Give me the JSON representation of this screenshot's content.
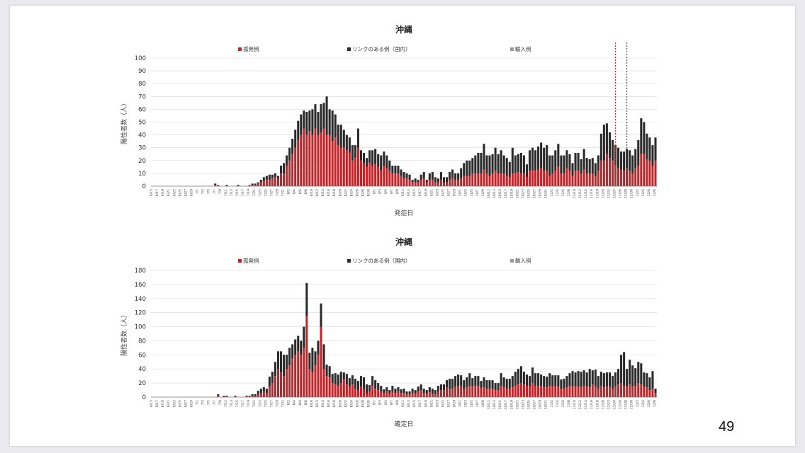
{
  "page_number": "49",
  "legend_labels": [
    "孤発例",
    "リンクのある例（国内）",
    "輸入例"
  ],
  "colors": {
    "sporadic": "#c0252a",
    "linked": "#2b2b2b",
    "imported": "#9a9a9a",
    "grid": "#d9d9d9",
    "red_marker": "#d42a2a",
    "dark_marker": "#334"
  },
  "chart_data": [
    {
      "type": "bar",
      "stacked": true,
      "title": "沖縄",
      "xlabel": "発症日",
      "ylabel": "陽性者数（人）",
      "ylim": [
        0,
        100
      ],
      "yticks": [
        0,
        10,
        20,
        30,
        40,
        50,
        60,
        70,
        80,
        90,
        100
      ],
      "start_date": "6/15",
      "tick_every_days": 2,
      "num_days": 177,
      "legend": "top",
      "vertical_markers": [
        {
          "day_index": 162,
          "style": "red-dashed"
        },
        {
          "day_index": 166,
          "style": "black-dashed"
        }
      ],
      "series": [
        {
          "name": "孤発例",
          "values": [
            0,
            0,
            0,
            0,
            0,
            0,
            0,
            0,
            0,
            0,
            0,
            0,
            0,
            0,
            0,
            0,
            0,
            0,
            0,
            0,
            0,
            0,
            1,
            1,
            0,
            0,
            0,
            0,
            0,
            0,
            0,
            0,
            0,
            0,
            1,
            1,
            1,
            2,
            3,
            4,
            5,
            5,
            6,
            7,
            6,
            10,
            10,
            16,
            20,
            25,
            30,
            36,
            40,
            45,
            40,
            43,
            40,
            45,
            40,
            42,
            45,
            40,
            40,
            35,
            38,
            32,
            30,
            30,
            28,
            26,
            20,
            22,
            30,
            20,
            18,
            15,
            18,
            16,
            17,
            15,
            12,
            16,
            14,
            12,
            10,
            10,
            10,
            8,
            6,
            6,
            5,
            3,
            3,
            3,
            5,
            6,
            3,
            5,
            5,
            3,
            3,
            5,
            3,
            3,
            5,
            6,
            5,
            5,
            6,
            8,
            8,
            8,
            10,
            10,
            10,
            10,
            13,
            10,
            8,
            10,
            12,
            10,
            10,
            10,
            8,
            7,
            10,
            10,
            11,
            10,
            10,
            7,
            12,
            12,
            12,
            13,
            14,
            12,
            12,
            8,
            10,
            12,
            15,
            10,
            10,
            14,
            12,
            8,
            12,
            12,
            10,
            13,
            10,
            10,
            10,
            8,
            12,
            20,
            20,
            25,
            22,
            20,
            16,
            14,
            13,
            12,
            14,
            12,
            10,
            14,
            16,
            25,
            25,
            21,
            20,
            16,
            20,
            18,
            12,
            10,
            8
          ]
        },
        {
          "name": "リンクのある例（国内）",
          "values": [
            0,
            0,
            0,
            0,
            0,
            0,
            0,
            0,
            0,
            0,
            0,
            0,
            0,
            0,
            0,
            0,
            0,
            0,
            0,
            0,
            0,
            0,
            1,
            0,
            0,
            0,
            1,
            0,
            0,
            0,
            1,
            0,
            0,
            0,
            0,
            1,
            1,
            1,
            2,
            3,
            3,
            4,
            3,
            3,
            2,
            6,
            8,
            8,
            10,
            12,
            14,
            15,
            16,
            14,
            18,
            16,
            20,
            19,
            18,
            22,
            20,
            30,
            20,
            24,
            18,
            16,
            18,
            14,
            12,
            12,
            12,
            10,
            15,
            8,
            8,
            7,
            10,
            12,
            12,
            10,
            12,
            11,
            10,
            8,
            6,
            6,
            6,
            5,
            5,
            4,
            4,
            2,
            3,
            2,
            4,
            5,
            2,
            5,
            6,
            4,
            3,
            6,
            4,
            4,
            6,
            7,
            5,
            5,
            8,
            10,
            12,
            12,
            12,
            14,
            16,
            16,
            20,
            14,
            16,
            15,
            18,
            15,
            18,
            14,
            14,
            12,
            20,
            14,
            14,
            16,
            14,
            10,
            16,
            18,
            16,
            18,
            20,
            18,
            20,
            16,
            14,
            16,
            18,
            14,
            14,
            14,
            13,
            10,
            14,
            14,
            11,
            16,
            12,
            11,
            12,
            10,
            12,
            21,
            28,
            24,
            20,
            16,
            16,
            16,
            14,
            15,
            15,
            16,
            14,
            15,
            20,
            28,
            25,
            20,
            18,
            16,
            18,
            16,
            10,
            8,
            6
          ]
        },
        {
          "name": "輸入例",
          "values": [
            0,
            0,
            0,
            0,
            0,
            0,
            0,
            0,
            0,
            0,
            0,
            0,
            0,
            0,
            0,
            0,
            0,
            0,
            0,
            0,
            0,
            0,
            0,
            0,
            0,
            0,
            0,
            0,
            0,
            0,
            0,
            0,
            0,
            0,
            0,
            0,
            0,
            0,
            0,
            0,
            0,
            0,
            0,
            0,
            0,
            0,
            0,
            0,
            0,
            0,
            0,
            0,
            0,
            0,
            0,
            0,
            0,
            0,
            0,
            0,
            0,
            0,
            0,
            0,
            0,
            0,
            0,
            0,
            0,
            0,
            0,
            0,
            0,
            0,
            0,
            0,
            0,
            0,
            0,
            0,
            0,
            0,
            0,
            0,
            0,
            0,
            0,
            0,
            0,
            0,
            0,
            0,
            0,
            0,
            0,
            0,
            0,
            0,
            0,
            0,
            0,
            0,
            0,
            0,
            0,
            0,
            0,
            0,
            0,
            0,
            0,
            0,
            0,
            0,
            0,
            0,
            0,
            0,
            0,
            0,
            0,
            0,
            0,
            0,
            0,
            0,
            0,
            0,
            0,
            0,
            0,
            0,
            0,
            0,
            0,
            0,
            0,
            0,
            0,
            0,
            0,
            0,
            0,
            0,
            0,
            0,
            0,
            0,
            0,
            0,
            0,
            0,
            0,
            0,
            0,
            0,
            0,
            0,
            0,
            0,
            0,
            0,
            0,
            0,
            0,
            0,
            0,
            0,
            0,
            0,
            0,
            0,
            0,
            0,
            0,
            0,
            0
          ]
        }
      ]
    },
    {
      "type": "bar",
      "stacked": true,
      "title": "沖縄",
      "xlabel": "確定日",
      "ylabel": "陽性者数（人）",
      "ylim": [
        0,
        180
      ],
      "yticks": [
        0,
        20,
        40,
        60,
        80,
        100,
        120,
        140,
        160,
        180
      ],
      "start_date": "6/15",
      "tick_every_days": 2,
      "num_days": 177,
      "legend": "top",
      "series": [
        {
          "name": "孤発例",
          "values": [
            0,
            0,
            0,
            0,
            0,
            0,
            0,
            0,
            0,
            0,
            0,
            0,
            0,
            0,
            0,
            0,
            0,
            0,
            0,
            0,
            0,
            0,
            0,
            2,
            0,
            1,
            1,
            0,
            0,
            1,
            0,
            0,
            0,
            1,
            1,
            2,
            1,
            4,
            6,
            8,
            6,
            15,
            20,
            30,
            40,
            35,
            30,
            40,
            45,
            55,
            60,
            65,
            60,
            70,
            115,
            40,
            35,
            45,
            60,
            100,
            40,
            30,
            28,
            20,
            18,
            16,
            20,
            25,
            18,
            15,
            18,
            12,
            10,
            15,
            12,
            5,
            8,
            16,
            12,
            10,
            8,
            6,
            8,
            5,
            8,
            6,
            8,
            6,
            6,
            4,
            4,
            6,
            5,
            8,
            10,
            6,
            5,
            7,
            5,
            4,
            8,
            10,
            10,
            14,
            12,
            12,
            15,
            16,
            16,
            12,
            14,
            16,
            15,
            16,
            16,
            13,
            14,
            12,
            12,
            12,
            10,
            10,
            16,
            14,
            12,
            12,
            14,
            16,
            18,
            20,
            18,
            16,
            15,
            20,
            16,
            16,
            16,
            14,
            14,
            16,
            15,
            15,
            15,
            12,
            12,
            14,
            16,
            15,
            15,
            15,
            14,
            16,
            15,
            14,
            18,
            15,
            12,
            16,
            14,
            15,
            15,
            12,
            15,
            18,
            20,
            16,
            15,
            18,
            15,
            16,
            20,
            18,
            15,
            14,
            10,
            12,
            6
          ]
        },
        {
          "name": "リンクのある例（国内）",
          "values": [
            0,
            0,
            0,
            0,
            0,
            0,
            0,
            0,
            0,
            0,
            0,
            0,
            0,
            0,
            0,
            0,
            0,
            0,
            0,
            0,
            0,
            0,
            0,
            2,
            0,
            1,
            1,
            0,
            0,
            1,
            0,
            0,
            0,
            1,
            1,
            2,
            3,
            5,
            6,
            6,
            6,
            14,
            16,
            20,
            25,
            30,
            30,
            20,
            25,
            20,
            22,
            22,
            20,
            30,
            47,
            23,
            35,
            20,
            20,
            33,
            35,
            16,
            16,
            13,
            16,
            16,
            16,
            10,
            15,
            12,
            13,
            14,
            13,
            15,
            16,
            13,
            9,
            14,
            12,
            10,
            8,
            5,
            6,
            5,
            8,
            6,
            6,
            5,
            6,
            4,
            4,
            6,
            5,
            7,
            8,
            6,
            5,
            7,
            7,
            6,
            8,
            8,
            8,
            10,
            14,
            14,
            15,
            16,
            15,
            12,
            14,
            18,
            12,
            14,
            14,
            10,
            14,
            12,
            12,
            12,
            10,
            10,
            18,
            14,
            14,
            14,
            16,
            20,
            22,
            24,
            18,
            16,
            15,
            22,
            18,
            18,
            16,
            16,
            15,
            18,
            16,
            16,
            16,
            13,
            14,
            16,
            18,
            22,
            20,
            22,
            22,
            22,
            20,
            26,
            20,
            24,
            18,
            20,
            20,
            20,
            20,
            18,
            20,
            22,
            40,
            48,
            25,
            35,
            30,
            25,
            30,
            30,
            20,
            20,
            18,
            25,
            6
          ]
        },
        {
          "name": "輸入例",
          "values": [
            0,
            0,
            0,
            0,
            0,
            0,
            0,
            0,
            0,
            0,
            0,
            0,
            0,
            0,
            0,
            0,
            0,
            0,
            0,
            0,
            0,
            0,
            0,
            0,
            0,
            0,
            0,
            0,
            0,
            0,
            0,
            0,
            0,
            0,
            0,
            0,
            0,
            0,
            0,
            0,
            0,
            0,
            0,
            0,
            0,
            0,
            0,
            0,
            0,
            0,
            0,
            0,
            0,
            0,
            0,
            0,
            0,
            0,
            0,
            0,
            0,
            0,
            0,
            0,
            0,
            0,
            0,
            0,
            0,
            0,
            0,
            0,
            0,
            0,
            0,
            0,
            0,
            0,
            0,
            0,
            0,
            0,
            0,
            0,
            0,
            0,
            0,
            0,
            0,
            0,
            0,
            0,
            0,
            0,
            0,
            0,
            0,
            0,
            0,
            0,
            0,
            0,
            0,
            0,
            0,
            0,
            0,
            0,
            0,
            0,
            0,
            0,
            0,
            0,
            0,
            0,
            0,
            0,
            0,
            0,
            0,
            0,
            0,
            0,
            0,
            0,
            0,
            0,
            0,
            0,
            0,
            0,
            0,
            0,
            0,
            0,
            0,
            0,
            0,
            0,
            0,
            0,
            0,
            0,
            0,
            0,
            0,
            0,
            0,
            0,
            0,
            0,
            0,
            0,
            0,
            0,
            0,
            0,
            0,
            0,
            0,
            0,
            0,
            0,
            0,
            0,
            0,
            0,
            0,
            0,
            0,
            0,
            0,
            0,
            0,
            0,
            0
          ]
        }
      ]
    }
  ]
}
